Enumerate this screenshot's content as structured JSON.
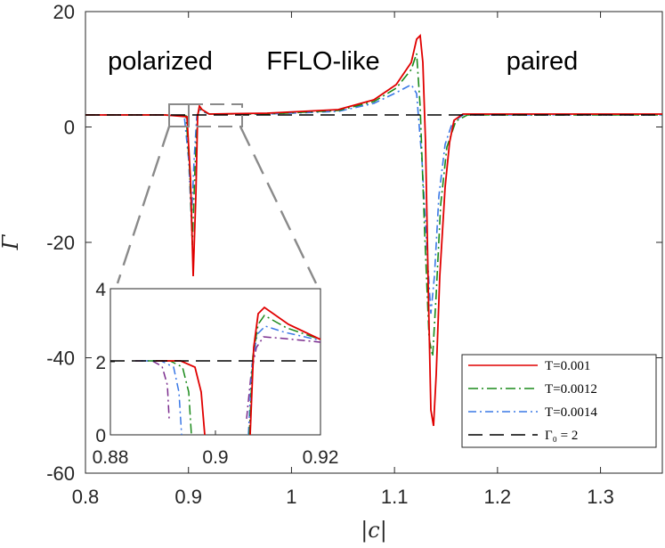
{
  "chart_data": {
    "type": "line",
    "xlabel": "|c|",
    "ylabel": "Γ",
    "xlim": [
      0.8,
      1.36
    ],
    "ylim": [
      -60,
      20
    ],
    "xticks": [
      "0.8",
      "0.9",
      "1",
      "1.1",
      "1.2",
      "1.3"
    ],
    "yticks": [
      "-60",
      "-40",
      "-20",
      "0",
      "20"
    ],
    "annotations": [
      "polarized",
      "FFLO-like",
      "paired"
    ],
    "series": [
      {
        "name": "T=0.001",
        "color": "#e00000",
        "style": "solid"
      },
      {
        "name": "T=0.0012",
        "color": "#1a8a1a",
        "style": "dashdot"
      },
      {
        "name": "T=0.0014",
        "color": "#3a78e6",
        "style": "dashdot"
      },
      {
        "name": "Γ₀ = 2",
        "color": "#000000",
        "style": "dashed"
      }
    ],
    "baseline": 2,
    "inset": {
      "xlim": [
        0.88,
        0.92
      ],
      "ylim": [
        0,
        4
      ],
      "xticks": [
        "0.88",
        "0.9",
        "0.92"
      ],
      "yticks": [
        "0",
        "2",
        "4"
      ]
    }
  }
}
